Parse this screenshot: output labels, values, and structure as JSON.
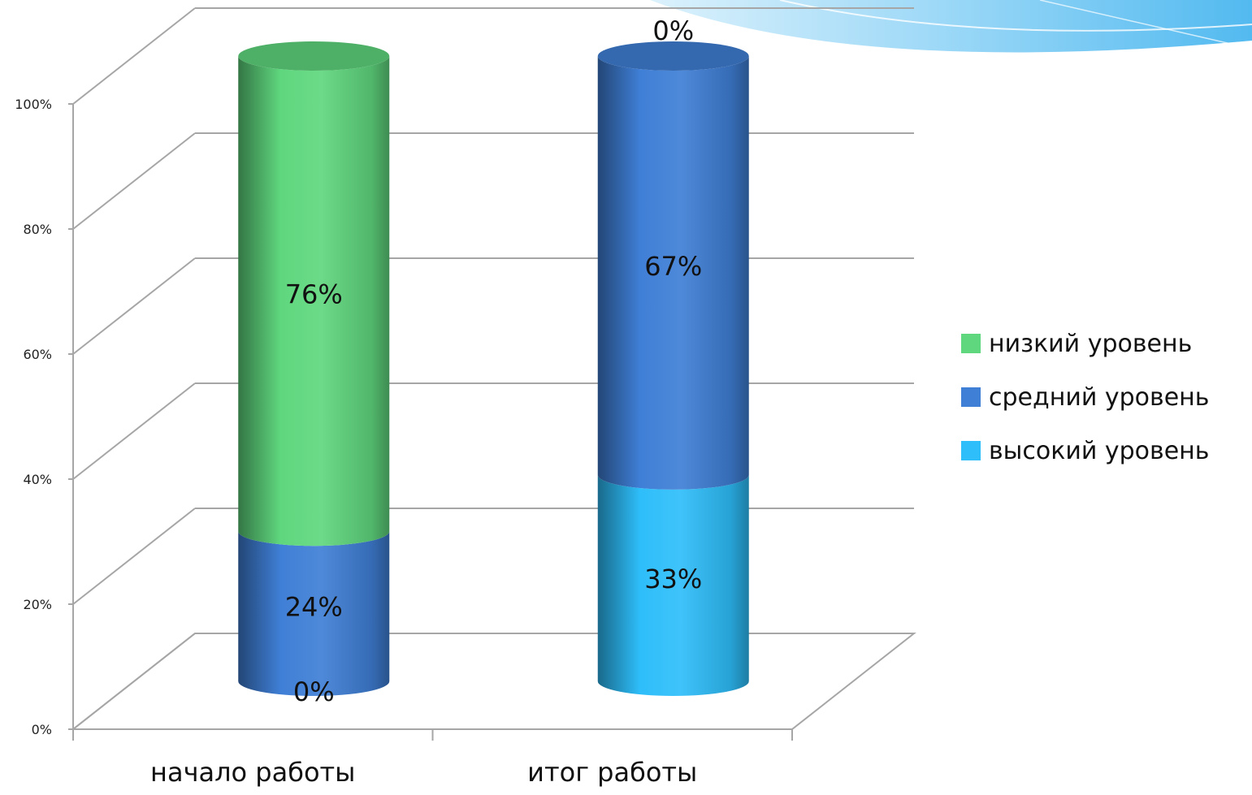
{
  "chart_data": {
    "type": "bar",
    "stacked": true,
    "three_d": true,
    "shape": "cylinder",
    "percent_stacked": true,
    "categories": [
      "начало работы",
      "итог работы"
    ],
    "series": [
      {
        "name": "высокий уровень",
        "values": [
          0,
          33
        ],
        "labels": [
          "0%",
          "33%"
        ],
        "color": "#2EBEFA"
      },
      {
        "name": "средний уровень",
        "values": [
          24,
          67
        ],
        "labels": [
          "24%",
          "67%"
        ],
        "color": "#3F7FD6"
      },
      {
        "name": "низкий уровень",
        "values": [
          76,
          0
        ],
        "labels": [
          "76%",
          "0%"
        ],
        "color": "#5FD77E"
      }
    ],
    "yticks": [
      "0%",
      "20%",
      "40%",
      "60%",
      "80%",
      "100%"
    ],
    "ylim": [
      0,
      100
    ],
    "grid": true,
    "legend_position": "right",
    "legend_order": [
      "низкий уровень",
      "средний уровень",
      "высокий уровень"
    ]
  },
  "decoration": {
    "swoosh_color": "#7CCBF2"
  }
}
